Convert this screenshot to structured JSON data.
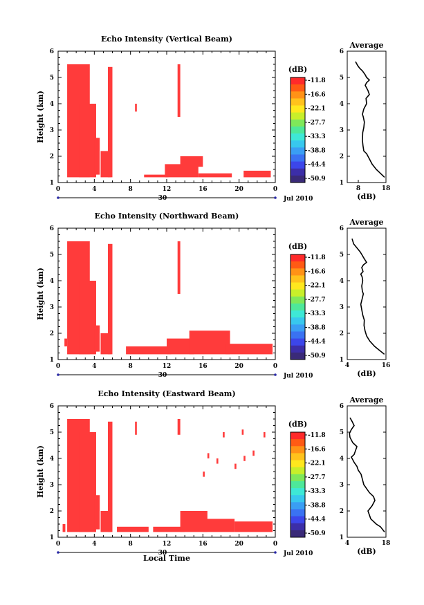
{
  "chart_data": [
    {
      "type": "heatmap",
      "title": "Echo Intensity (Vertical Beam)",
      "ylabel": "Height (km)",
      "xlim": [
        0,
        24
      ],
      "ylim": [
        1,
        6
      ],
      "x_ticks": [
        "0",
        "4",
        "8",
        "12",
        "16",
        "20",
        "0"
      ],
      "y_ticks": [
        "1",
        "2",
        "3",
        "4",
        "5",
        "6"
      ],
      "date_day": "30",
      "date_label": "Jul 2010",
      "xlabel": "",
      "colorbar": {
        "unit": "(dB)",
        "ticks": [
          "-11.8",
          "-16.6",
          "-22.1",
          "-27.7",
          "-33.3",
          "-38.8",
          "-44.4",
          "-50.9"
        ]
      },
      "echo_regions": [
        {
          "x": [
            1.0,
            3.5
          ],
          "y": [
            1.2,
            5.5
          ]
        },
        {
          "x": [
            2.3,
            4.2
          ],
          "y": [
            1.2,
            4.0
          ]
        },
        {
          "x": [
            4.0,
            4.6
          ],
          "y": [
            1.3,
            2.7
          ]
        },
        {
          "x": [
            4.7,
            5.8
          ],
          "y": [
            1.2,
            2.2
          ]
        },
        {
          "x": [
            5.5,
            6.0
          ],
          "y": [
            1.2,
            5.4
          ]
        },
        {
          "x": [
            9.5,
            12.2
          ],
          "y": [
            1.2,
            1.3
          ]
        },
        {
          "x": [
            11.8,
            15.5
          ],
          "y": [
            1.2,
            1.7
          ]
        },
        {
          "x": [
            13.5,
            16.0
          ],
          "y": [
            1.6,
            2.0
          ]
        },
        {
          "x": [
            15.5,
            19.2
          ],
          "y": [
            1.2,
            1.35
          ]
        },
        {
          "x": [
            20.5,
            23.5
          ],
          "y": [
            1.2,
            1.45
          ]
        },
        {
          "x": [
            13.2,
            13.5
          ],
          "y": [
            3.5,
            5.5
          ]
        },
        {
          "x": [
            8.5,
            8.7
          ],
          "y": [
            3.7,
            4.0
          ]
        }
      ],
      "profile": {
        "title": "Average",
        "xlabel": "(dB)",
        "xlim": [
          4,
          18
        ],
        "x_ticks": [
          "8",
          "18"
        ],
        "ylim": [
          1,
          6
        ],
        "y_ticks": [
          "1",
          "2",
          "3",
          "4",
          "5",
          "6"
        ],
        "x": [
          17.5,
          16,
          14.5,
          13,
          12,
          11,
          10,
          9.7,
          9.5,
          9.6,
          10,
          10.2,
          9.8,
          9.5,
          10,
          11,
          10.8,
          12,
          11.5,
          10.5,
          11,
          12,
          11,
          10.5,
          9.5,
          8.5,
          7.8,
          7
        ],
        "y": [
          1.2,
          1.35,
          1.5,
          1.7,
          1.9,
          2.1,
          2.2,
          2.4,
          2.6,
          2.9,
          3.1,
          3.3,
          3.5,
          3.6,
          3.8,
          4.0,
          4.2,
          4.35,
          4.5,
          4.7,
          4.8,
          4.9,
          5.0,
          5.1,
          5.25,
          5.35,
          5.45,
          5.6
        ]
      }
    },
    {
      "type": "heatmap",
      "title": "Echo Intensity (Northward Beam)",
      "ylabel": "Height (km)",
      "xlim": [
        0,
        24
      ],
      "ylim": [
        1,
        6
      ],
      "x_ticks": [
        "0",
        "4",
        "8",
        "12",
        "16",
        "20",
        "0"
      ],
      "y_ticks": [
        "1",
        "2",
        "3",
        "4",
        "5",
        "6"
      ],
      "date_day": "30",
      "date_label": "Jul 2010",
      "xlabel": "",
      "colorbar": {
        "unit": "(dB)",
        "ticks": [
          "-11.8",
          "-16.6",
          "-22.1",
          "-27.7",
          "-33.3",
          "-38.8",
          "-44.4",
          "-50.9"
        ]
      },
      "echo_regions": [
        {
          "x": [
            0.7,
            1.0
          ],
          "y": [
            1.5,
            1.8
          ]
        },
        {
          "x": [
            1.0,
            3.5
          ],
          "y": [
            1.2,
            5.5
          ]
        },
        {
          "x": [
            2.3,
            4.2
          ],
          "y": [
            1.2,
            4.0
          ]
        },
        {
          "x": [
            4.0,
            4.6
          ],
          "y": [
            1.3,
            2.3
          ]
        },
        {
          "x": [
            4.7,
            5.8
          ],
          "y": [
            1.2,
            2.0
          ]
        },
        {
          "x": [
            5.5,
            6.0
          ],
          "y": [
            1.2,
            5.4
          ]
        },
        {
          "x": [
            7.5,
            12.5
          ],
          "y": [
            1.2,
            1.5
          ]
        },
        {
          "x": [
            12.0,
            15.0
          ],
          "y": [
            1.2,
            1.8
          ]
        },
        {
          "x": [
            14.5,
            19.0
          ],
          "y": [
            1.2,
            2.1
          ]
        },
        {
          "x": [
            18.5,
            23.7
          ],
          "y": [
            1.2,
            1.6
          ]
        },
        {
          "x": [
            13.2,
            13.5
          ],
          "y": [
            3.5,
            5.5
          ]
        }
      ],
      "profile": {
        "title": "Average",
        "xlabel": "(dB)",
        "xlim": [
          4,
          16
        ],
        "x_ticks": [
          "4",
          "16"
        ],
        "ylim": [
          1,
          6
        ],
        "y_ticks": [
          "1",
          "2",
          "3",
          "4",
          "5",
          "6"
        ],
        "x": [
          15.5,
          14,
          12.5,
          11,
          10,
          9.5,
          9.2,
          9.3,
          8.8,
          8.5,
          8.2,
          8.6,
          9,
          8.7,
          8.5,
          8.8,
          8.6,
          8.2,
          8.9,
          8.5,
          9,
          10,
          9.2,
          8.5,
          8,
          7,
          6,
          5.5
        ],
        "y": [
          1.2,
          1.35,
          1.5,
          1.7,
          1.9,
          2.1,
          2.3,
          2.5,
          2.7,
          2.9,
          3.1,
          3.3,
          3.5,
          3.6,
          3.8,
          4.0,
          4.15,
          4.25,
          4.35,
          4.5,
          4.6,
          4.7,
          4.85,
          5.0,
          5.1,
          5.25,
          5.4,
          5.6
        ]
      }
    },
    {
      "type": "heatmap",
      "title": "Echo Intensity (Eastward Beam)",
      "ylabel": "Height (km)",
      "xlim": [
        0,
        24
      ],
      "ylim": [
        1,
        6
      ],
      "x_ticks": [
        "0",
        "4",
        "8",
        "12",
        "16",
        "20",
        "0"
      ],
      "y_ticks": [
        "1",
        "2",
        "3",
        "4",
        "5",
        "6"
      ],
      "date_day": "30",
      "date_label": "Jul 2010",
      "xlabel": "Local Time",
      "colorbar": {
        "unit": "(dB)",
        "ticks": [
          "-11.8",
          "-16.6",
          "-22.1",
          "-27.7",
          "-33.3",
          "-38.8",
          "-44.4",
          "-50.9"
        ]
      },
      "echo_regions": [
        {
          "x": [
            0.5,
            0.8
          ],
          "y": [
            1.2,
            1.5
          ]
        },
        {
          "x": [
            1.0,
            3.5
          ],
          "y": [
            1.2,
            5.5
          ]
        },
        {
          "x": [
            2.3,
            4.2
          ],
          "y": [
            1.2,
            5.0
          ]
        },
        {
          "x": [
            4.0,
            4.6
          ],
          "y": [
            1.3,
            2.6
          ]
        },
        {
          "x": [
            4.7,
            5.8
          ],
          "y": [
            1.2,
            2.0
          ]
        },
        {
          "x": [
            5.5,
            6.0
          ],
          "y": [
            1.2,
            5.4
          ]
        },
        {
          "x": [
            6.5,
            10.0
          ],
          "y": [
            1.2,
            1.4
          ]
        },
        {
          "x": [
            10.5,
            14.0
          ],
          "y": [
            1.2,
            1.4
          ]
        },
        {
          "x": [
            13.5,
            16.5
          ],
          "y": [
            1.2,
            2.0
          ]
        },
        {
          "x": [
            16.0,
            19.5
          ],
          "y": [
            1.2,
            1.7
          ]
        },
        {
          "x": [
            19.5,
            23.7
          ],
          "y": [
            1.2,
            1.6
          ]
        },
        {
          "x": [
            13.2,
            13.5
          ],
          "y": [
            4.9,
            5.5
          ]
        },
        {
          "x": [
            8.5,
            8.7
          ],
          "y": [
            4.9,
            5.4
          ]
        },
        {
          "x": [
            16.0,
            16.2
          ],
          "y": [
            3.3,
            3.5
          ]
        },
        {
          "x": [
            16.5,
            16.7
          ],
          "y": [
            4.0,
            4.2
          ]
        },
        {
          "x": [
            18.2,
            18.4
          ],
          "y": [
            4.8,
            5.0
          ]
        },
        {
          "x": [
            19.5,
            19.7
          ],
          "y": [
            3.6,
            3.8
          ]
        },
        {
          "x": [
            20.5,
            20.7
          ],
          "y": [
            3.9,
            4.1
          ]
        },
        {
          "x": [
            21.5,
            21.7
          ],
          "y": [
            4.1,
            4.3
          ]
        },
        {
          "x": [
            22.7,
            22.9
          ],
          "y": [
            4.8,
            5.0
          ]
        },
        {
          "x": [
            20.3,
            20.5
          ],
          "y": [
            4.9,
            5.1
          ]
        },
        {
          "x": [
            17.5,
            17.7
          ],
          "y": [
            3.8,
            4.0
          ]
        }
      ],
      "profile": {
        "title": "Average",
        "xlabel": "(dB)",
        "xlim": [
          4,
          18
        ],
        "x_ticks": [
          "4",
          "18"
        ],
        "ylim": [
          1,
          6
        ],
        "y_ticks": [
          "1",
          "2",
          "3",
          "4",
          "5",
          "6"
        ],
        "x": [
          17.5,
          16,
          14.5,
          13.5,
          12.5,
          12,
          11.5,
          13,
          14,
          13.5,
          12,
          11,
          10,
          9.5,
          9,
          8,
          7.5,
          6.5,
          6,
          5.5,
          6.5,
          7,
          7.5,
          6,
          5,
          4.8,
          5.5,
          6.5,
          5.8,
          5
        ],
        "y": [
          1.2,
          1.4,
          1.5,
          1.6,
          1.7,
          1.85,
          2.0,
          2.2,
          2.4,
          2.55,
          2.7,
          2.85,
          3.0,
          3.2,
          3.4,
          3.55,
          3.7,
          3.85,
          3.95,
          4.05,
          4.15,
          4.3,
          4.45,
          4.6,
          4.8,
          4.95,
          5.1,
          5.25,
          5.4,
          5.55
        ]
      }
    }
  ],
  "colors": {
    "echo": "#ff3b3b",
    "colorbar": [
      "#ff2a2a",
      "#ff5a14",
      "#ff9216",
      "#ffc21c",
      "#ffe81e",
      "#c8ef2a",
      "#7fe85a",
      "#4ee89a",
      "#3ee8d6",
      "#38c8ee",
      "#3a9ef4",
      "#3a72f2",
      "#3c46ea",
      "#3c2ea8",
      "#3a2a78"
    ]
  }
}
